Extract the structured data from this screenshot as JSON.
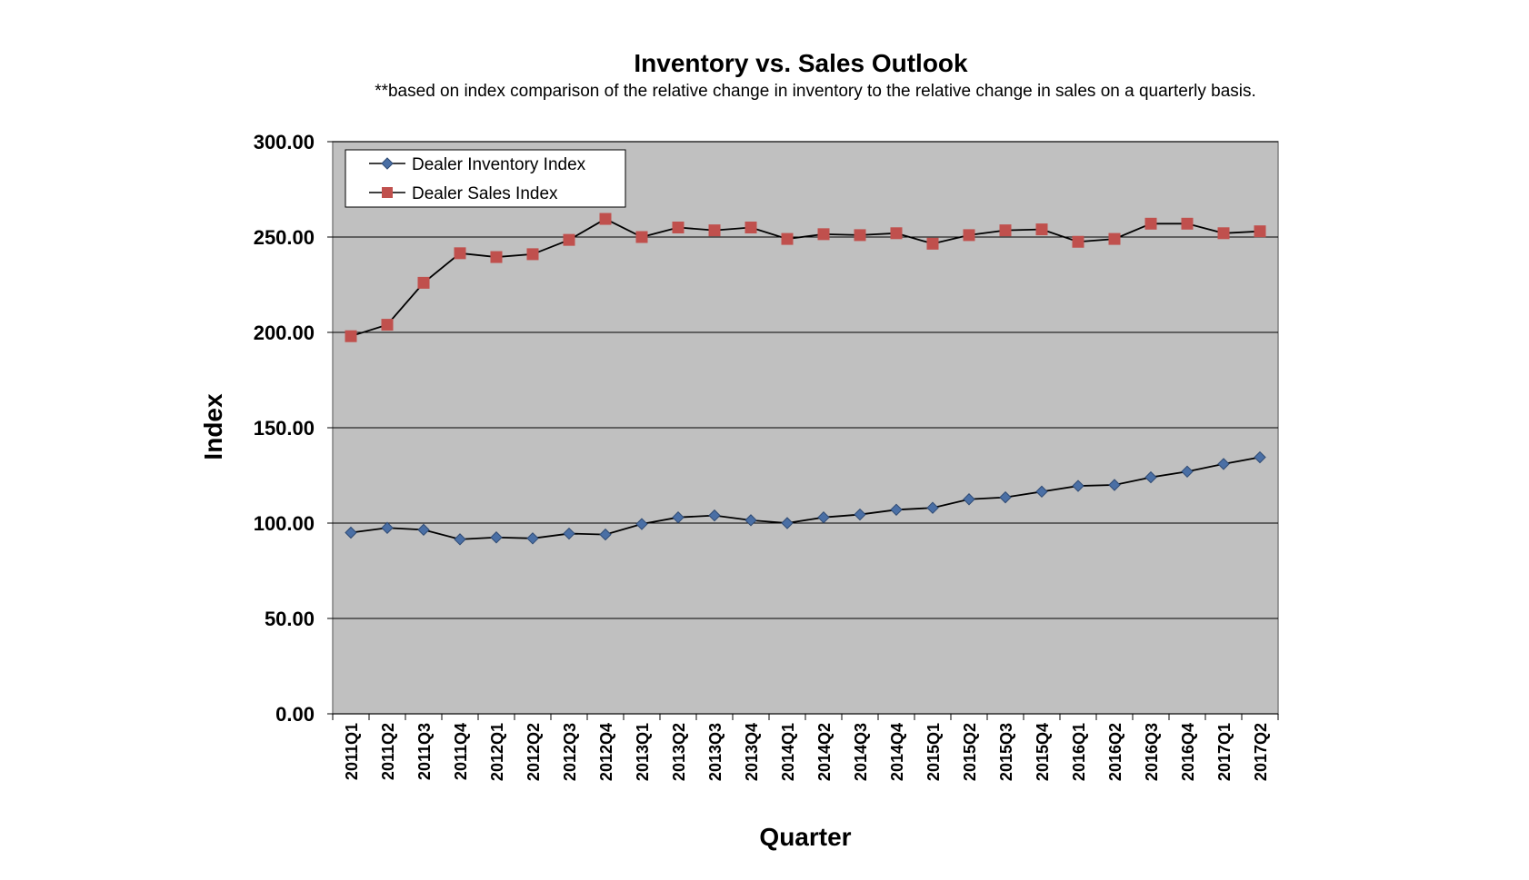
{
  "chart_data": {
    "type": "line",
    "title": "Inventory vs. Sales Outlook",
    "subtitle": "**based on index comparison of the relative change in inventory to the relative change in sales on a quarterly basis.",
    "xlabel": "Quarter",
    "ylabel": "Index",
    "ylim": [
      0,
      300
    ],
    "yticks": [
      "0.00",
      "50.00",
      "100.00",
      "150.00",
      "200.00",
      "250.00",
      "300.00"
    ],
    "grid": true,
    "legend_position": "top-left",
    "categories": [
      "2011Q1",
      "2011Q2",
      "2011Q3",
      "2011Q4",
      "2012Q1",
      "2012Q2",
      "2012Q3",
      "2012Q4",
      "2013Q1",
      "2013Q2",
      "2013Q3",
      "2013Q4",
      "2014Q1",
      "2014Q2",
      "2014Q3",
      "2014Q4",
      "2015Q1",
      "2015Q2",
      "2015Q3",
      "2015Q4",
      "2016Q1",
      "2016Q2",
      "2016Q3",
      "2016Q4",
      "2017Q1",
      "2017Q2"
    ],
    "series": [
      {
        "name": "Dealer Inventory Index",
        "marker": "diamond",
        "color": "#4a6fa5",
        "values": [
          95,
          97.5,
          96.5,
          91.5,
          92.5,
          92,
          94.5,
          94,
          99.5,
          103,
          104,
          101.5,
          100,
          103,
          104.5,
          107,
          108,
          112.5,
          113.5,
          116.5,
          119.5,
          120,
          124,
          127,
          131,
          134.5
        ]
      },
      {
        "name": "Dealer Sales Index",
        "marker": "square",
        "color": "#c0504d",
        "values": [
          198,
          204,
          226,
          241.5,
          239.5,
          241,
          248.5,
          259.5,
          250,
          255,
          253.5,
          255,
          249,
          251.5,
          251,
          252,
          246.5,
          251,
          253.5,
          254,
          247.5,
          249,
          257,
          257,
          252,
          253
        ]
      }
    ]
  },
  "colors": {
    "plot_background": "#c0c0c0",
    "gridline": "#000000",
    "line": "#000000"
  }
}
